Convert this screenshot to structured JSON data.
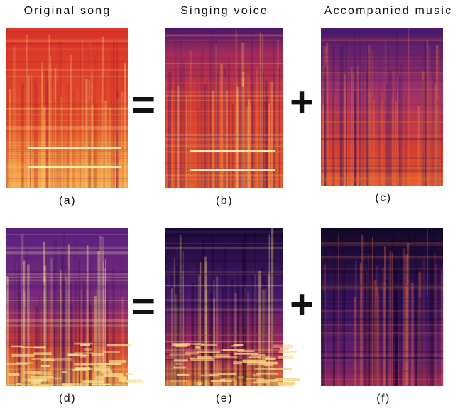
{
  "columns": [
    {
      "title": "Original song"
    },
    {
      "title": "Singing voice"
    },
    {
      "title": "Accompanied music"
    }
  ],
  "rows": [
    {
      "operators": [
        "=",
        "+"
      ],
      "panels": [
        "(a)",
        "(b)",
        "(c)"
      ]
    },
    {
      "operators": [
        "=",
        "+"
      ],
      "panels": [
        "(d)",
        "(e)",
        "(f)"
      ]
    }
  ]
}
